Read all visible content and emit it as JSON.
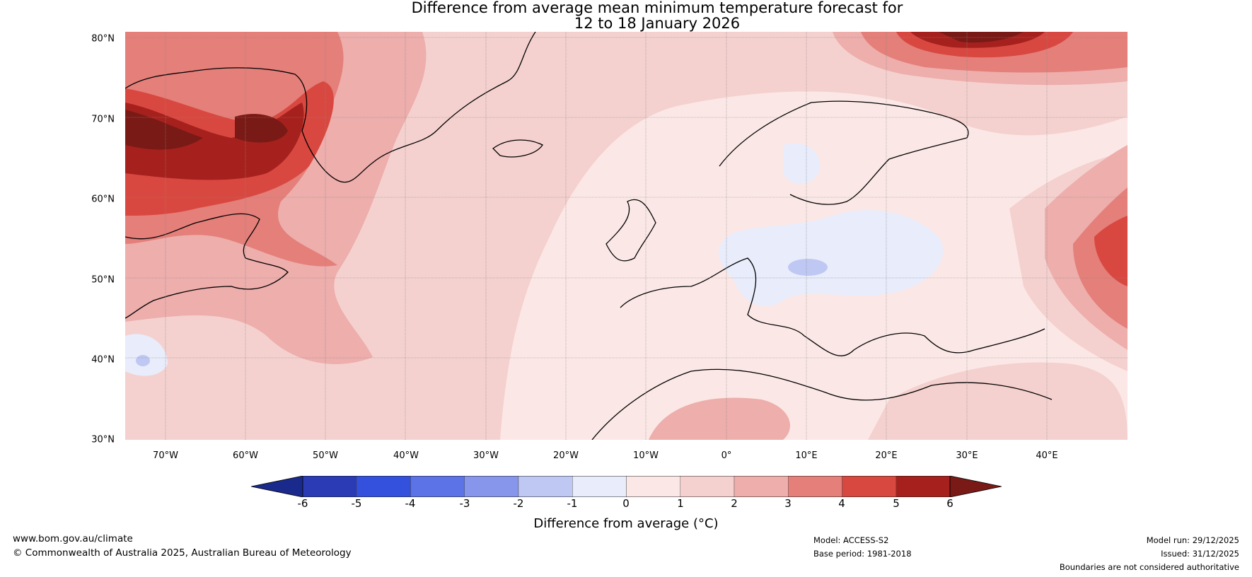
{
  "title": {
    "line1": "Difference from average mean minimum temperature forecast for",
    "line2": "12 to 18 January 2026"
  },
  "map": {
    "latitude_labels": [
      "80°N",
      "70°N",
      "60°N",
      "50°N",
      "40°N",
      "30°N"
    ],
    "longitude_labels": [
      "70°W",
      "60°W",
      "50°W",
      "40°W",
      "30°W",
      "20°W",
      "10°W",
      "0°",
      "10°E",
      "20°E",
      "30°E",
      "40°E"
    ]
  },
  "colorbar": {
    "label": "Difference from average (°C)",
    "ticks": [
      "-6",
      "-5",
      "-4",
      "-3",
      "-2",
      "-1",
      "0",
      "1",
      "2",
      "3",
      "4",
      "5",
      "6"
    ],
    "colors": {
      "below": "#1a2a8c",
      "bins": [
        "#2b3bb5",
        "#3451de",
        "#5b73e6",
        "#8796ea",
        "#bfc8f3",
        "#e8ecfb",
        "#fbe8e6",
        "#f4d1cf",
        "#edaeac",
        "#e47f7a",
        "#d84840",
        "#a6211d"
      ],
      "above": "#7a1a16"
    }
  },
  "footer": {
    "website": "www.bom.gov.au/climate",
    "copyright": "© Commonwealth of Australia 2025, Australian Bureau of Meteorology",
    "model": "Model: ACCESS-S2",
    "base_period": "Base period: 1981-2018",
    "model_run": "Model run: 29/12/2025",
    "issued": "Issued: 31/12/2025",
    "disclaimer": "Boundaries are not considered authoritative"
  }
}
